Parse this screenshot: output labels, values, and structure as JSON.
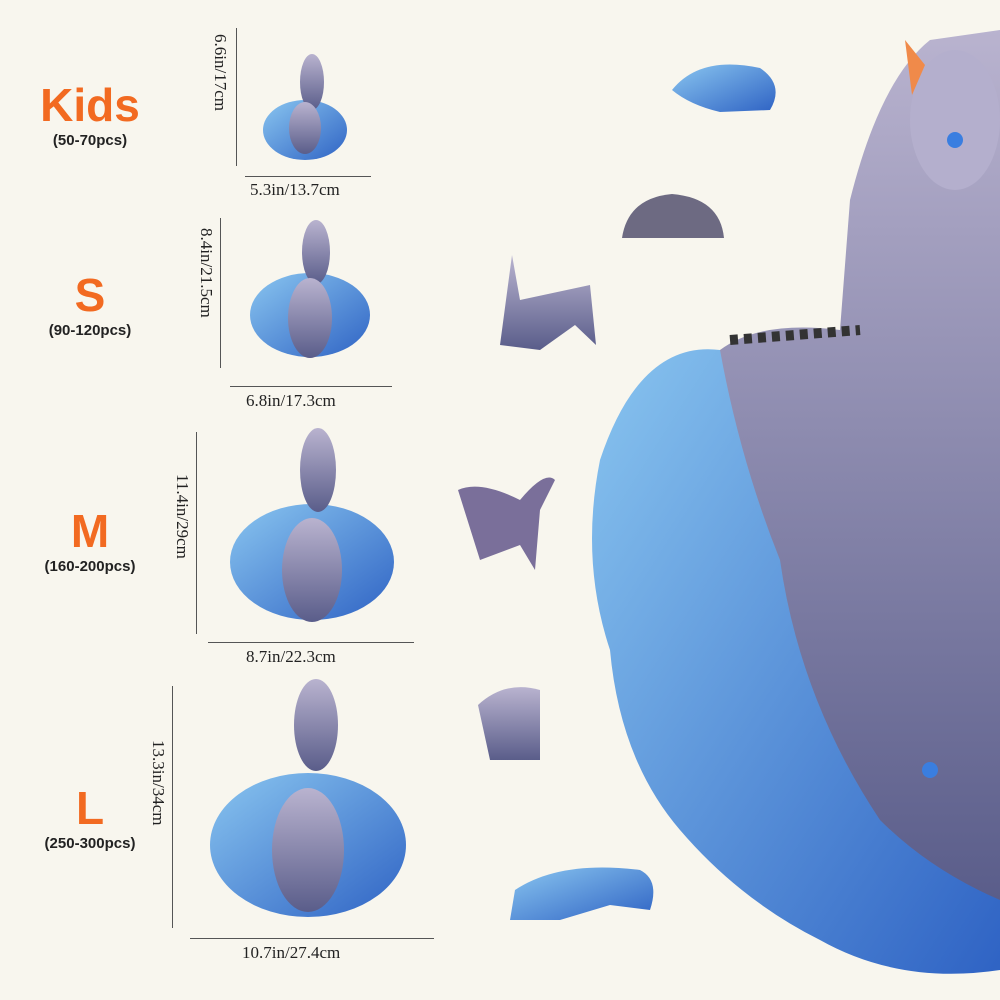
{
  "colors": {
    "accent": "#f26a21",
    "background": "#f8f6ee",
    "water": "#4a8fd8",
    "cat": "#8b8fb8"
  },
  "sizes": [
    {
      "name": "Kids",
      "pieces": "(50-70pcs)",
      "height": "6.6in/17cm",
      "width": "5.3in/13.7cm"
    },
    {
      "name": "S",
      "pieces": "(90-120pcs)",
      "height": "8.4in/21.5cm",
      "width": "6.8in/17.3cm"
    },
    {
      "name": "M",
      "pieces": "(160-200pcs)",
      "height": "11.4in/29cm",
      "width": "8.7in/22.3cm"
    },
    {
      "name": "L",
      "pieces": "(250-300pcs)",
      "height": "13.3in/34cm",
      "width": "10.7in/27.4cm"
    }
  ]
}
